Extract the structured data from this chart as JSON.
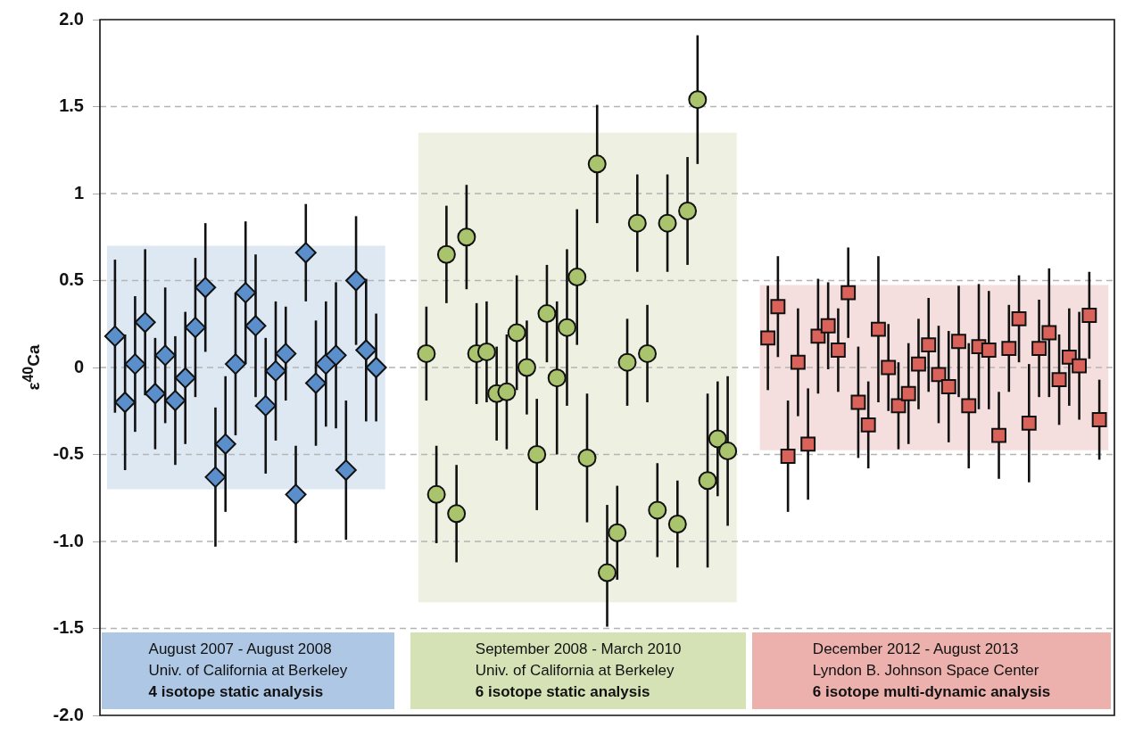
{
  "chart_data": {
    "type": "scatter",
    "ylabel": "ε$^{40}$Ca",
    "categories": [
      null,
      null,
      null,
      null,
      null,
      null,
      null,
      null,
      null,
      null,
      null,
      null,
      null,
      null,
      null,
      null,
      null,
      null,
      null,
      null,
      null,
      null,
      null,
      null,
      null,
      null,
      null,
      null,
      null,
      null,
      null,
      null,
      null,
      null,
      null,
      null,
      null,
      null,
      null,
      null,
      null,
      null,
      null,
      null,
      null,
      null,
      null,
      null,
      null,
      null,
      null,
      null,
      null,
      null,
      null,
      null,
      null,
      null,
      null,
      null,
      null,
      null,
      null,
      null,
      null,
      null,
      null,
      null,
      null,
      null,
      null,
      null,
      null,
      null,
      null,
      null,
      null,
      null,
      null,
      null,
      null,
      null,
      null,
      null,
      null,
      null,
      null,
      null,
      null,
      null,
      null,
      null,
      null,
      null,
      null,
      null,
      null,
      null,
      null,
      null,
      null
    ],
    "series": [
      {
        "marker": "diamond",
        "color": "#5b8fcb",
        "values": [
          null,
          0.18,
          -0.2,
          0.02,
          0.26,
          -0.15,
          0.07,
          -0.19,
          -0.06,
          0.23,
          0.46,
          -0.63,
          -0.44,
          0.02,
          0.43,
          0.24,
          -0.22,
          -0.02,
          0.08,
          -0.73,
          0.66,
          -0.09,
          0.02,
          0.07,
          -0.59,
          0.5,
          0.1,
          0.0,
          null,
          null,
          null,
          null,
          null,
          null,
          null,
          null,
          null,
          null,
          null,
          null,
          null,
          null,
          null,
          null,
          null,
          null,
          null,
          null,
          null,
          null,
          null,
          null,
          null,
          null,
          null,
          null,
          null,
          null,
          null,
          null,
          null,
          null,
          null,
          null,
          null,
          null,
          null,
          null,
          null,
          null,
          null,
          null,
          null,
          null,
          null,
          null,
          null,
          null,
          null,
          null,
          null,
          null,
          null,
          null,
          null,
          null,
          null,
          null,
          null,
          null,
          null,
          null,
          null,
          null,
          null,
          null,
          null,
          null,
          null,
          null,
          null
        ],
        "errors": [
          null,
          0.44,
          0.39,
          0.39,
          0.42,
          0.32,
          0.39,
          0.37,
          0.38,
          0.4,
          0.37,
          0.4,
          0.39,
          0.41,
          0.41,
          0.41,
          0.39,
          0.4,
          0.27,
          0.28,
          0.28,
          0.36,
          0.36,
          0.42,
          0.4,
          0.37,
          0.41,
          0.31,
          null,
          null,
          null,
          null,
          null,
          null,
          null,
          null,
          null,
          null,
          null,
          null,
          null,
          null,
          null,
          null,
          null,
          null,
          null,
          null,
          null,
          null,
          null,
          null,
          null,
          null,
          null,
          null,
          null,
          null,
          null,
          null,
          null,
          null,
          null,
          null,
          null,
          null,
          null,
          null,
          null,
          null,
          null,
          null,
          null,
          null,
          null,
          null,
          null,
          null,
          null,
          null,
          null,
          null,
          null,
          null,
          null,
          null,
          null,
          null,
          null,
          null,
          null,
          null,
          null,
          null,
          null,
          null,
          null,
          null,
          null,
          null,
          null
        ]
      },
      {
        "marker": "circle",
        "color": "#a9c46c",
        "values": [
          null,
          null,
          null,
          null,
          null,
          null,
          null,
          null,
          null,
          null,
          null,
          null,
          null,
          null,
          null,
          null,
          null,
          null,
          null,
          null,
          null,
          null,
          null,
          null,
          null,
          null,
          null,
          null,
          null,
          null,
          null,
          null,
          0.08,
          -0.73,
          0.65,
          -0.84,
          0.75,
          0.08,
          0.09,
          -0.15,
          -0.14,
          0.2,
          0.0,
          -0.5,
          0.31,
          -0.06,
          0.23,
          0.52,
          -0.52,
          1.17,
          -1.18,
          -0.95,
          0.03,
          0.83,
          0.08,
          -0.82,
          0.83,
          -0.9,
          0.9,
          1.54,
          -0.65,
          -0.41,
          -0.48,
          null,
          null,
          null,
          null,
          null,
          null,
          null,
          null,
          null,
          null,
          null,
          null,
          null,
          null,
          null,
          null,
          null,
          null,
          null,
          null,
          null,
          null,
          null,
          null,
          null,
          null,
          null,
          null,
          null,
          null,
          null,
          null,
          null,
          null,
          null,
          null,
          null,
          null
        ],
        "errors": [
          null,
          null,
          null,
          null,
          null,
          null,
          null,
          null,
          null,
          null,
          null,
          null,
          null,
          null,
          null,
          null,
          null,
          null,
          null,
          null,
          null,
          null,
          null,
          null,
          null,
          null,
          null,
          null,
          null,
          null,
          null,
          null,
          0.27,
          0.28,
          0.28,
          0.28,
          0.3,
          0.29,
          0.29,
          0.27,
          0.33,
          0.33,
          0.27,
          0.32,
          0.28,
          0.44,
          0.45,
          0.39,
          0.37,
          0.34,
          [
            -1.49,
            -0.79
          ],
          0.27,
          0.25,
          0.28,
          0.28,
          0.27,
          0.28,
          0.25,
          0.31,
          0.37,
          0.5,
          0.33,
          0.43,
          null,
          null,
          null,
          null,
          null,
          null,
          null,
          null,
          null,
          null,
          null,
          null,
          null,
          null,
          null,
          null,
          null,
          null,
          null,
          null,
          null,
          null,
          null,
          null,
          null,
          null,
          null,
          null,
          null,
          null,
          null,
          null,
          null,
          null,
          null,
          null,
          null,
          null
        ]
      },
      {
        "marker": "square",
        "color": "#d9625b",
        "values": [
          null,
          null,
          null,
          null,
          null,
          null,
          null,
          null,
          null,
          null,
          null,
          null,
          null,
          null,
          null,
          null,
          null,
          null,
          null,
          null,
          null,
          null,
          null,
          null,
          null,
          null,
          null,
          null,
          null,
          null,
          null,
          null,
          null,
          null,
          null,
          null,
          null,
          null,
          null,
          null,
          null,
          null,
          null,
          null,
          null,
          null,
          null,
          null,
          null,
          null,
          null,
          null,
          null,
          null,
          null,
          null,
          null,
          null,
          null,
          null,
          null,
          null,
          null,
          null,
          null,
          null,
          0.17,
          0.35,
          -0.51,
          0.03,
          -0.44,
          0.18,
          0.24,
          0.1,
          0.43,
          -0.2,
          -0.33,
          0.22,
          0.0,
          -0.22,
          -0.15,
          0.02,
          0.13,
          -0.04,
          -0.11,
          0.15,
          -0.22,
          0.12,
          0.1,
          -0.39,
          0.11,
          0.28,
          -0.32,
          0.11,
          0.2,
          -0.07,
          0.06,
          0.01,
          0.3,
          -0.3,
          null
        ],
        "errors": [
          null,
          null,
          null,
          null,
          null,
          null,
          null,
          null,
          null,
          null,
          null,
          null,
          null,
          null,
          null,
          null,
          null,
          null,
          null,
          null,
          null,
          null,
          null,
          null,
          null,
          null,
          null,
          null,
          null,
          null,
          null,
          null,
          null,
          null,
          null,
          null,
          null,
          null,
          null,
          null,
          null,
          null,
          null,
          null,
          null,
          null,
          null,
          null,
          null,
          null,
          null,
          null,
          null,
          null,
          null,
          null,
          null,
          null,
          null,
          null,
          null,
          null,
          null,
          null,
          null,
          null,
          0.3,
          0.29,
          0.32,
          0.31,
          0.32,
          0.33,
          0.25,
          0.24,
          0.26,
          0.32,
          0.25,
          0.42,
          0.25,
          0.25,
          0.29,
          0.26,
          0.27,
          0.28,
          0.32,
          0.32,
          0.36,
          0.36,
          0.34,
          0.25,
          0.25,
          0.25,
          0.34,
          0.28,
          0.37,
          0.26,
          0.28,
          0.31,
          0.25,
          0.23,
          null
        ]
      }
    ],
    "ylim": [
      -2,
      2
    ],
    "yticks": [
      {
        "value": 2,
        "label": "2.0"
      },
      1.5,
      1,
      0.5,
      0,
      -0.5,
      {
        "value": -1,
        "label": "-1.0"
      },
      -1.5,
      {
        "value": -2,
        "label": "-2.0"
      }
    ],
    "grid": "y",
    "legend": false,
    "bands": [
      {
        "axis": "y",
        "from": -0.7,
        "to": 0.7,
        "color": "#dee8f3"
      },
      {
        "axis": "y",
        "from": -1.35,
        "to": 1.35,
        "color": "#eef1e1"
      },
      {
        "axis": "y",
        "from": -0.475,
        "to": 0.475,
        "color": "#f5dfde"
      }
    ],
    "annotations": [
      "August 2007 - August 2008\nUniv. of California at Berkeley\n4 isotope static analysis",
      "September 2008 - March 2010\nUniv. of California at Berkeley\n6 isotope static analysis",
      "December 2012 - August 2013\nLyndon B. Johnson Space Center\n6 isotope multi-dynamic analysis"
    ]
  }
}
